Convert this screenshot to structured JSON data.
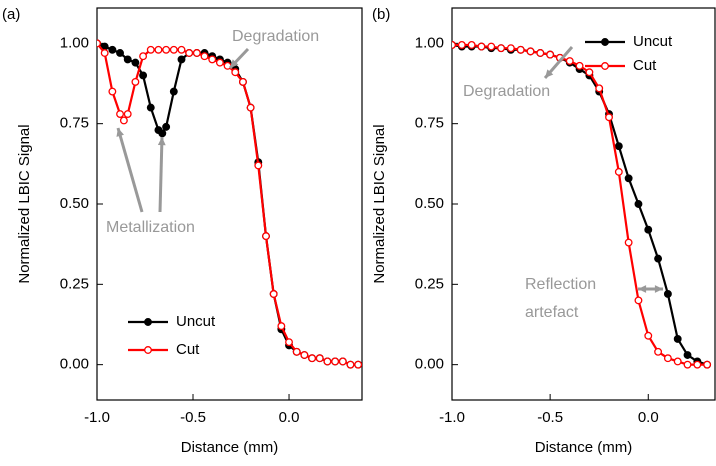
{
  "chart_data": [
    {
      "type": "line",
      "xlabel": "Distance (mm)",
      "ylabel": "Normalized LBIC Signal",
      "annotations": [
        "(a)",
        "Degradation",
        "Metallization"
      ],
      "xlim": [
        -1.0,
        0.38
      ],
      "ylim": [
        -0.11,
        1.11
      ],
      "xticks": [
        {
          "value": -1.0,
          "label": "-1.0"
        },
        {
          "value": -0.5,
          "label": "-0.5"
        },
        {
          "value": 0,
          "label": "0.0"
        }
      ],
      "yticks": [
        {
          "value": 0,
          "label": "0.00"
        },
        {
          "value": 0.25,
          "label": "0.25"
        },
        {
          "value": 0.5,
          "label": "0.50"
        },
        {
          "value": 0.75,
          "label": "0.75"
        },
        {
          "value": 1.0,
          "label": "1.00"
        }
      ],
      "legend": "lower left",
      "series": [
        {
          "name": "Uncut",
          "color": "#000000",
          "x": [
            -1.0,
            -0.96,
            -0.92,
            -0.88,
            -0.84,
            -0.8,
            -0.76,
            -0.72,
            -0.68,
            -0.66,
            -0.64,
            -0.6,
            -0.56,
            -0.52,
            -0.48,
            -0.44,
            -0.4,
            -0.36,
            -0.32,
            -0.28,
            -0.24,
            -0.2,
            -0.16,
            -0.12,
            -0.08,
            -0.04,
            0.0,
            0.04,
            0.08,
            0.12,
            0.16,
            0.2,
            0.24,
            0.28,
            0.32,
            0.36
          ],
          "values": [
            1.0,
            0.99,
            0.98,
            0.97,
            0.95,
            0.94,
            0.9,
            0.8,
            0.73,
            0.72,
            0.74,
            0.85,
            0.95,
            0.97,
            0.97,
            0.97,
            0.96,
            0.95,
            0.94,
            0.92,
            0.88,
            0.8,
            0.63,
            0.4,
            0.22,
            0.11,
            0.06,
            0.04,
            0.03,
            0.02,
            0.02,
            0.01,
            0.01,
            0.01,
            0.0,
            0.0
          ]
        },
        {
          "name": "Cut",
          "color": "#ff0000",
          "x": [
            -1.0,
            -0.96,
            -0.92,
            -0.88,
            -0.86,
            -0.84,
            -0.8,
            -0.76,
            -0.72,
            -0.68,
            -0.64,
            -0.6,
            -0.56,
            -0.52,
            -0.48,
            -0.44,
            -0.4,
            -0.36,
            -0.32,
            -0.28,
            -0.24,
            -0.2,
            -0.16,
            -0.12,
            -0.08,
            -0.04,
            0.0,
            0.04,
            0.08,
            0.12,
            0.16,
            0.2,
            0.24,
            0.28,
            0.32,
            0.36
          ],
          "values": [
            1.0,
            0.97,
            0.85,
            0.78,
            0.76,
            0.78,
            0.88,
            0.96,
            0.98,
            0.98,
            0.98,
            0.98,
            0.98,
            0.97,
            0.97,
            0.96,
            0.95,
            0.94,
            0.93,
            0.91,
            0.88,
            0.8,
            0.62,
            0.4,
            0.22,
            0.12,
            0.07,
            0.04,
            0.03,
            0.02,
            0.02,
            0.01,
            0.01,
            0.01,
            0.0,
            0.0
          ]
        }
      ]
    },
    {
      "type": "line",
      "xlabel": "Distance (mm)",
      "ylabel": "Normalized LBIC Signal",
      "annotations": [
        "(b)",
        "Degradation",
        "Reflection",
        "artefact"
      ],
      "xlim": [
        -1.0,
        0.34
      ],
      "ylim": [
        -0.11,
        1.11
      ],
      "xticks": [
        {
          "value": -1.0,
          "label": "-1.0"
        },
        {
          "value": -0.5,
          "label": "-0.5"
        },
        {
          "value": 0,
          "label": "0.0"
        }
      ],
      "yticks": [
        {
          "value": 0,
          "label": "0.00"
        },
        {
          "value": 0.25,
          "label": "0.25"
        },
        {
          "value": 0.5,
          "label": "0.50"
        },
        {
          "value": 0.75,
          "label": "0.75"
        },
        {
          "value": 1.0,
          "label": "1.00"
        }
      ],
      "legend": "upper right",
      "series": [
        {
          "name": "Uncut",
          "color": "#000000",
          "x": [
            -1.0,
            -0.95,
            -0.9,
            -0.85,
            -0.8,
            -0.75,
            -0.7,
            -0.65,
            -0.6,
            -0.55,
            -0.5,
            -0.45,
            -0.4,
            -0.35,
            -0.3,
            -0.25,
            -0.2,
            -0.15,
            -0.1,
            -0.05,
            0.0,
            0.05,
            0.1,
            0.15,
            0.2,
            0.25,
            0.3
          ],
          "values": [
            0.995,
            0.99,
            0.99,
            0.99,
            0.985,
            0.985,
            0.98,
            0.98,
            0.975,
            0.97,
            0.965,
            0.955,
            0.94,
            0.92,
            0.9,
            0.85,
            0.78,
            0.68,
            0.58,
            0.5,
            0.42,
            0.33,
            0.22,
            0.08,
            0.03,
            0.01,
            0.0
          ]
        },
        {
          "name": "Cut",
          "color": "#ff0000",
          "x": [
            -1.0,
            -0.95,
            -0.9,
            -0.85,
            -0.8,
            -0.75,
            -0.7,
            -0.65,
            -0.6,
            -0.55,
            -0.5,
            -0.45,
            -0.4,
            -0.35,
            -0.3,
            -0.25,
            -0.2,
            -0.15,
            -0.1,
            -0.05,
            0.0,
            0.05,
            0.1,
            0.15,
            0.2,
            0.25,
            0.3
          ],
          "values": [
            0.995,
            0.995,
            0.995,
            0.99,
            0.99,
            0.985,
            0.985,
            0.98,
            0.975,
            0.97,
            0.965,
            0.955,
            0.945,
            0.93,
            0.91,
            0.86,
            0.77,
            0.6,
            0.38,
            0.2,
            0.09,
            0.04,
            0.02,
            0.01,
            0.0,
            0.0,
            0.0
          ]
        }
      ]
    }
  ]
}
